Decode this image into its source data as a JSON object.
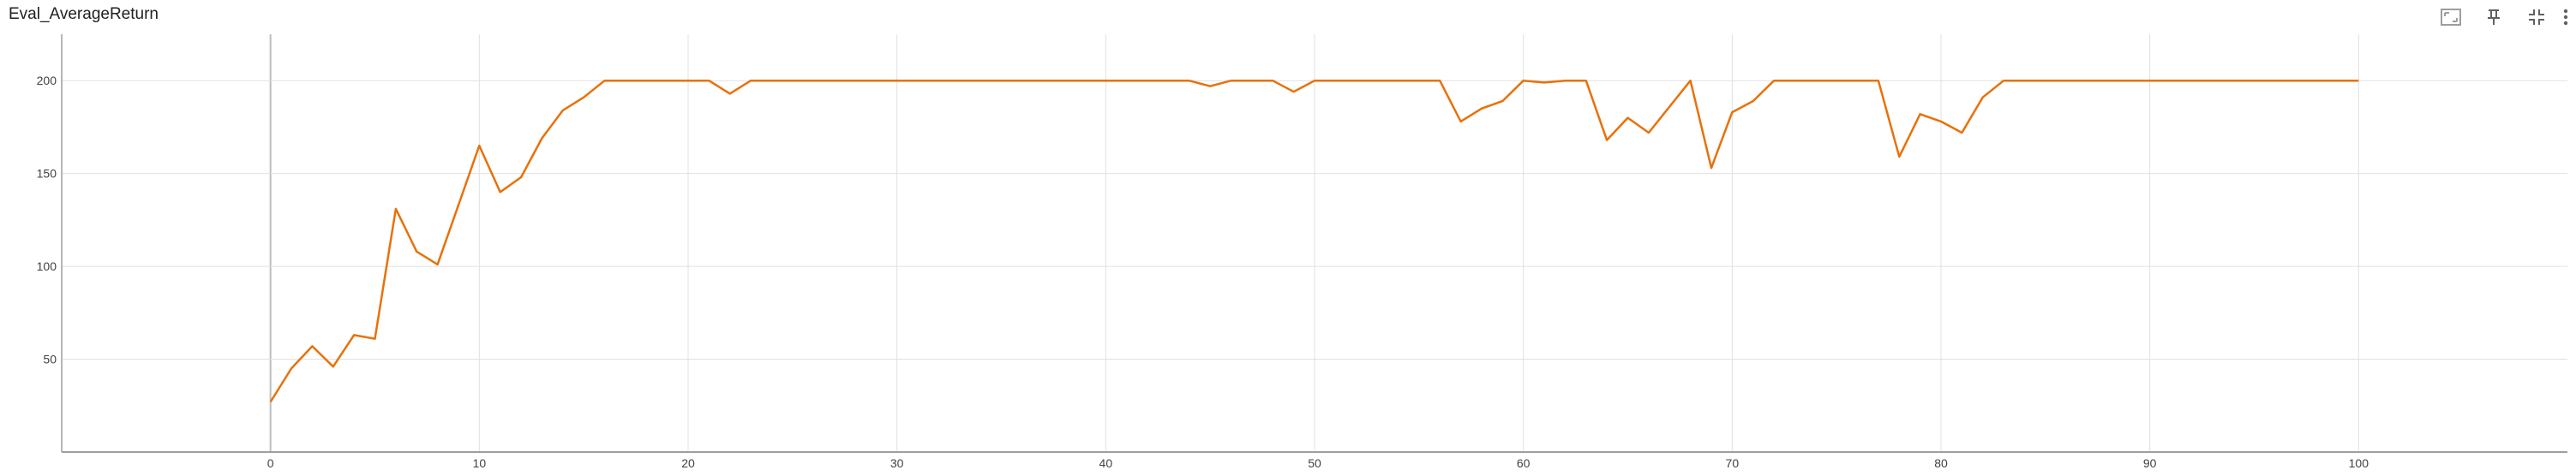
{
  "card": {
    "title": "Eval_AverageReturn",
    "toolbar": [
      {
        "name": "fit-to-data-icon",
        "label": ""
      },
      {
        "name": "pin-icon",
        "label": ""
      },
      {
        "name": "collapse-icon",
        "label": ""
      },
      {
        "name": "more-options-icon",
        "label": ""
      }
    ]
  },
  "chart_data": {
    "type": "line",
    "title": "Eval_AverageReturn",
    "xlabel": "",
    "ylabel": "",
    "xlim": [
      -10,
      110
    ],
    "ylim": [
      0,
      225
    ],
    "xticks": [
      0,
      10,
      20,
      30,
      40,
      50,
      60,
      70,
      80,
      90,
      100
    ],
    "yticks": [
      50,
      100,
      150,
      200
    ],
    "grid": true,
    "legend": "none",
    "series": [
      {
        "color": "#e8710a",
        "x": [
          0,
          1,
          2,
          3,
          4,
          5,
          6,
          7,
          8,
          9,
          10,
          11,
          12,
          13,
          14,
          15,
          16,
          17,
          18,
          19,
          20,
          21,
          22,
          23,
          24,
          25,
          26,
          27,
          28,
          29,
          30,
          31,
          32,
          33,
          34,
          35,
          36,
          37,
          38,
          39,
          40,
          41,
          42,
          43,
          44,
          45,
          46,
          47,
          48,
          49,
          50,
          51,
          52,
          53,
          54,
          55,
          56,
          57,
          58,
          59,
          60,
          61,
          62,
          63,
          64,
          65,
          66,
          67,
          68,
          69,
          70,
          71,
          72,
          73,
          74,
          75,
          76,
          77,
          78,
          79,
          80,
          81,
          82,
          83,
          84,
          85,
          86,
          87,
          88,
          89,
          90,
          91,
          92,
          93,
          94,
          95,
          96,
          97,
          98,
          99,
          100
        ],
        "y": [
          27,
          45,
          57,
          46,
          63,
          61,
          131,
          108,
          101,
          133,
          165,
          140,
          148,
          169,
          184,
          191,
          200,
          200,
          200,
          200,
          200,
          200,
          193,
          200,
          200,
          200,
          200,
          200,
          200,
          200,
          200,
          200,
          200,
          200,
          200,
          200,
          200,
          200,
          200,
          200,
          200,
          200,
          200,
          200,
          200,
          197,
          200,
          200,
          200,
          194,
          200,
          200,
          200,
          200,
          200,
          200,
          200,
          178,
          185,
          189,
          200,
          199,
          200,
          200,
          168,
          180,
          172,
          186,
          200,
          153,
          183,
          189,
          200,
          200,
          200,
          200,
          200,
          200,
          159,
          182,
          178,
          172,
          191,
          200,
          200,
          200,
          200,
          200,
          200,
          200,
          200,
          200,
          200,
          200,
          200,
          200,
          200,
          200,
          200,
          200,
          200
        ]
      }
    ]
  }
}
